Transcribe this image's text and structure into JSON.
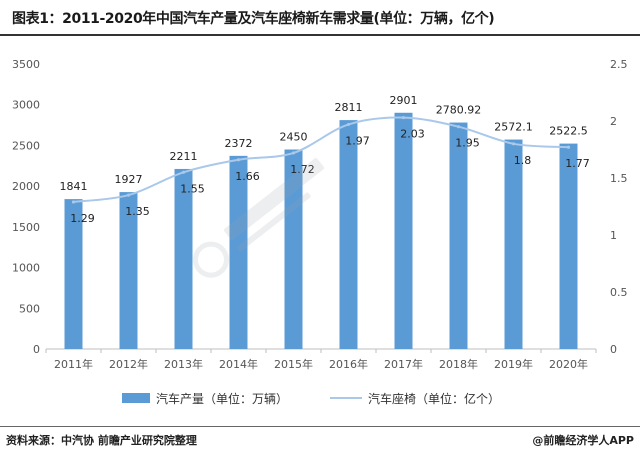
{
  "header": {
    "title": "图表1：2011-2020年中国汽车产量及汽车座椅新车需求量(单位：万辆，亿个)"
  },
  "footer": {
    "source": "资料来源：中汽协 前瞻产业研究院整理",
    "brand": "@前瞻经济学人APP"
  },
  "colors": {
    "bar": "#5b9bd5",
    "line": "#a9c8ea",
    "axis": "#bfbfbf"
  },
  "chart_data": {
    "type": "bar",
    "categories": [
      "2011年",
      "2012年",
      "2013年",
      "2014年",
      "2015年",
      "2016年",
      "2017年",
      "2018年",
      "2019年",
      "2020年"
    ],
    "series": [
      {
        "name": "汽车产量（单位：万辆）",
        "type": "bar",
        "axis": "left",
        "values": [
          1841,
          1927,
          2211,
          2372,
          2450,
          2811,
          2901,
          2780.92,
          2572.1,
          2522.5
        ],
        "labels": [
          "1841",
          "1927",
          "2211",
          "2372",
          "2450",
          "2811",
          "2901",
          "2780.92",
          "2572.1",
          "2522.5"
        ]
      },
      {
        "name": "汽车座椅（单位：亿个）",
        "type": "line",
        "axis": "right",
        "values": [
          1.29,
          1.35,
          1.55,
          1.66,
          1.72,
          1.97,
          2.03,
          1.95,
          1.8,
          1.77
        ],
        "labels": [
          "1.29",
          "1.35",
          "1.55",
          "1.66",
          "1.72",
          "1.97",
          "2.03",
          "1.95",
          "1.8",
          "1.77"
        ]
      }
    ],
    "y_left": {
      "range": [
        0,
        3500
      ],
      "ticks": [
        "0",
        "500",
        "1000",
        "1500",
        "2000",
        "2500",
        "3000",
        "3500"
      ]
    },
    "y_right": {
      "range": [
        0,
        2.5
      ],
      "ticks": [
        "0",
        "0.5",
        "1",
        "1.5",
        "2",
        "2.5"
      ]
    },
    "legend": {
      "position": "bottom"
    },
    "grid": false
  }
}
